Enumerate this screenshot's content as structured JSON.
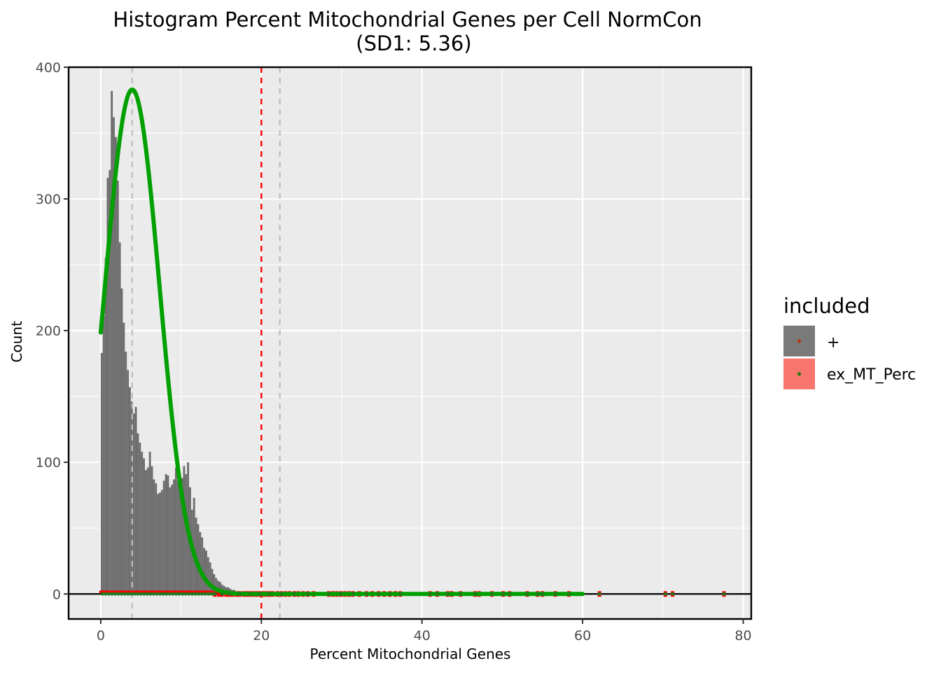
{
  "chart_data": {
    "type": "bar",
    "title": "Histogram Percent Mitochondrial Genes per Cell NormCon",
    "subtitle": "(SD1: 5.36)",
    "xlabel": "Percent Mitochondrial Genes",
    "ylabel": "Count",
    "xlim": [
      -4,
      81
    ],
    "ylim": [
      -19,
      400
    ],
    "x_ticks": [
      0,
      20,
      40,
      60,
      80
    ],
    "y_ticks": [
      0,
      100,
      200,
      300,
      400
    ],
    "grid": true,
    "legend": {
      "position": "right",
      "title": "included",
      "entries": [
        {
          "label": "+",
          "color": "#7a7a7a"
        },
        {
          "label": "ex_MT_Perc",
          "color": "#f8766d"
        }
      ]
    },
    "colors": {
      "panel": "#ebebeb",
      "grid": "#ffffff",
      "bars": "#6e6e6e",
      "fit_curve": "#00a000",
      "threshold_line": "#ff0000",
      "sd_lines": "#bdbdbd",
      "excluded_points": "#ff0000",
      "point_dots": "#1f7a1f"
    },
    "histogram": {
      "bin_width": 0.25,
      "bin_start": 0.0,
      "counts": [
        183,
        211,
        255,
        316,
        322,
        382,
        362,
        347,
        314,
        267,
        232,
        206,
        184,
        170,
        157,
        146,
        137,
        142,
        122,
        115,
        108,
        103,
        94,
        96,
        108,
        97,
        87,
        84,
        76,
        77,
        79,
        86,
        91,
        90,
        81,
        83,
        87,
        96,
        86,
        80,
        88,
        97,
        91,
        100,
        81,
        64,
        73,
        58,
        53,
        47,
        43,
        35,
        33,
        28,
        24,
        19,
        15,
        12,
        10,
        9,
        7,
        6,
        5,
        5,
        4,
        3,
        3,
        2,
        2,
        2,
        1,
        1,
        1,
        1,
        1,
        1,
        1,
        1
      ]
    },
    "fit_curve": {
      "type": "normal",
      "mean": 3.92,
      "sd": 3.42,
      "peak_count": 383
    },
    "reference_lines": {
      "threshold_x": 20,
      "sd_lines_x": [
        3.92,
        22.3
      ],
      "zero_y": 0
    },
    "excluded_points_x": [
      14.2,
      14.7,
      15.1,
      15.6,
      16.0,
      16.4,
      16.9,
      17.3,
      17.8,
      18.2,
      18.6,
      19.0,
      19.4,
      19.8,
      20.2,
      20.6,
      21.0,
      21.4,
      22.0,
      22.5,
      23.0,
      23.5,
      24.1,
      24.6,
      25.2,
      25.8,
      26.5,
      28.4,
      28.9,
      29.4,
      29.9,
      30.4,
      30.9,
      31.4,
      32.2,
      33.1,
      33.8,
      34.6,
      35.3,
      36.0,
      36.7,
      37.3,
      41.0,
      41.9,
      43.2,
      43.7,
      44.8,
      46.6,
      47.1,
      48.7,
      50.1,
      50.9,
      53.1,
      54.4,
      55.0,
      56.6,
      58.3,
      62.1,
      70.3,
      71.2,
      77.6
    ],
    "points_x": [
      0.2,
      0.6,
      1.0,
      1.4,
      1.8,
      2.2,
      2.6,
      3.0,
      3.4,
      3.8,
      4.2,
      4.6,
      5.0,
      5.4,
      5.8,
      6.2,
      6.6,
      7.0,
      7.4,
      7.8,
      8.2,
      8.6,
      9.0,
      9.4,
      9.8,
      10.2,
      10.6,
      11.0,
      11.4,
      11.8,
      12.2,
      12.6,
      13.0,
      13.4,
      13.8,
      14.2,
      15.1,
      16.0,
      17.3,
      18.6,
      19.8,
      21.0,
      22.5,
      24.1,
      25.8,
      28.4,
      29.9,
      31.4,
      33.1,
      34.6,
      36.0,
      37.3,
      41.0,
      41.9,
      43.2,
      44.8,
      46.6,
      48.7,
      50.1,
      50.9,
      53.1,
      54.4,
      55.0,
      56.6,
      58.3,
      62.1,
      70.3,
      71.2,
      77.6
    ]
  }
}
